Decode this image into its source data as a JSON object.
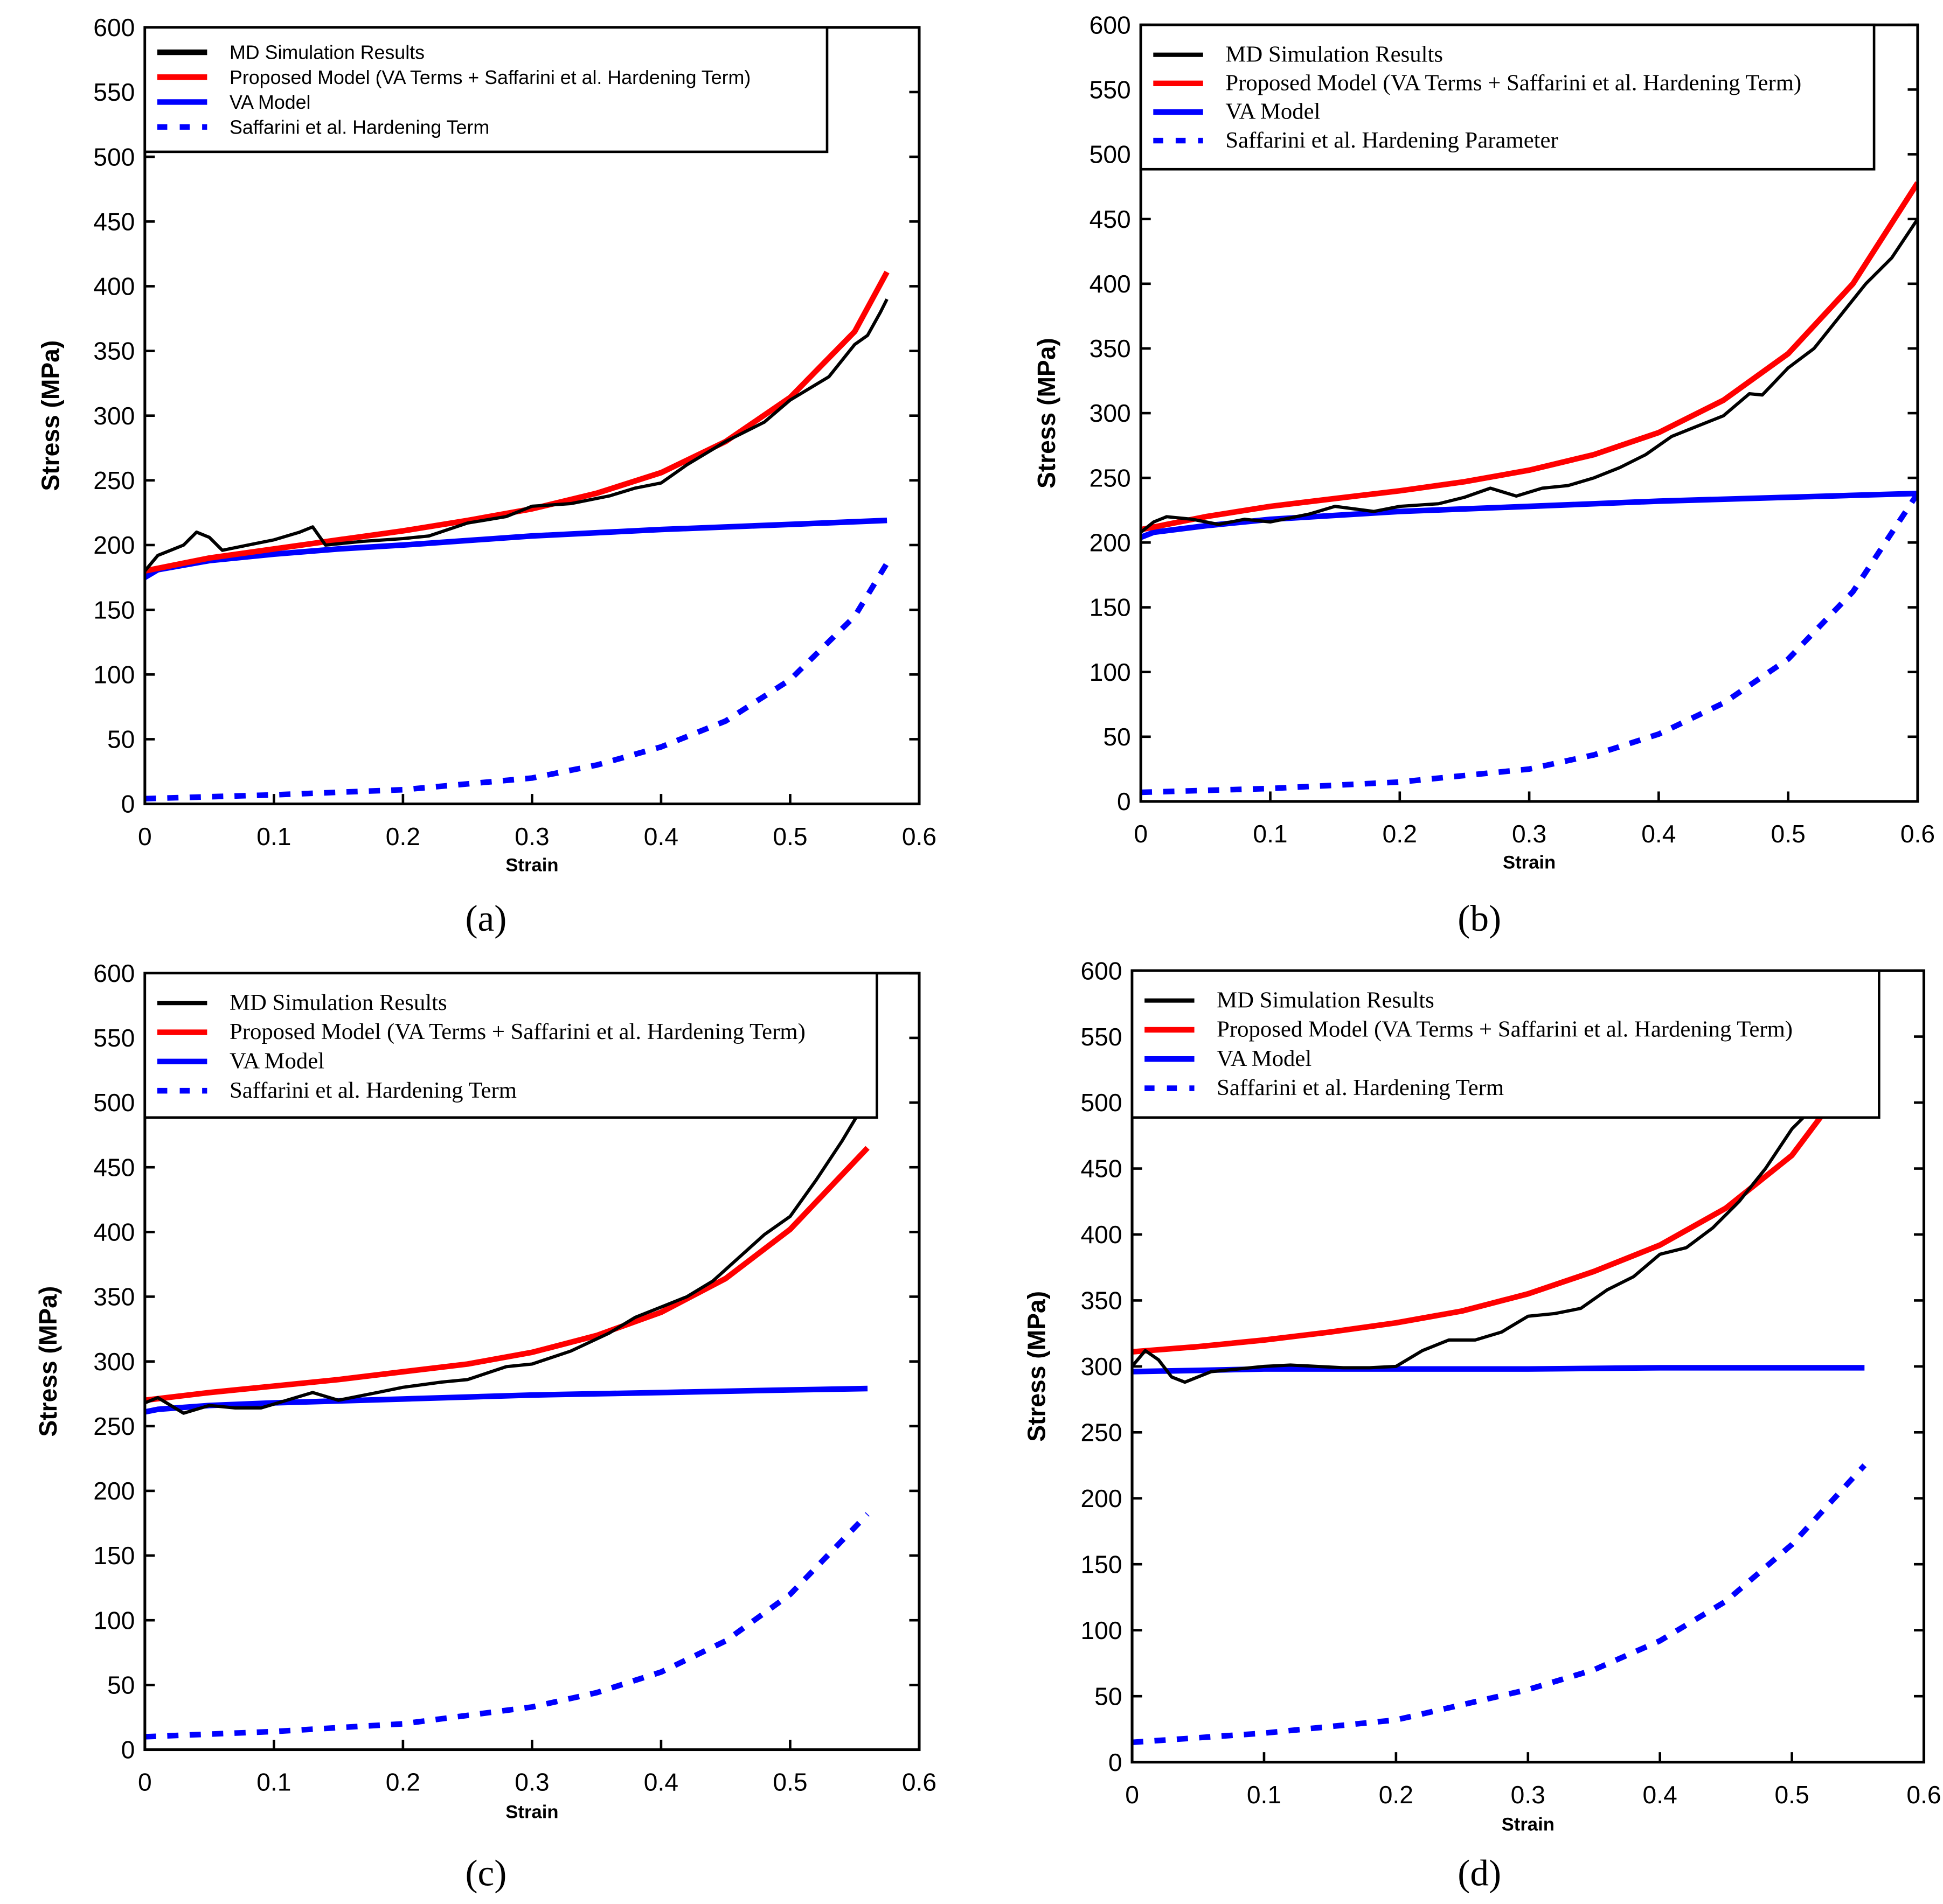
{
  "colors": {
    "md": "#000000",
    "proposed": "#ff0000",
    "va": "#0000ff",
    "hardening": "#0000ff"
  },
  "chart_data": [
    {
      "type": "line",
      "panel": "(a)",
      "xlabel": "Strain",
      "ylabel": "Stress (MPa)",
      "xlim": [
        0,
        0.6
      ],
      "ylim": [
        0,
        600
      ],
      "xticks": [
        "0",
        "0.1",
        "0.2",
        "0.3",
        "0.4",
        "0.5",
        "0.6"
      ],
      "yticks": [
        "0",
        "50",
        "100",
        "150",
        "200",
        "250",
        "300",
        "350",
        "400",
        "450",
        "500",
        "550",
        "600"
      ],
      "legend": [
        "MD Simulation Results",
        "Proposed Model (VA Terms + Saffarini et al. Hardening Term)",
        "VA Model",
        "Saffarini et al. Hardening Term"
      ],
      "series": [
        {
          "name": "MD Simulation Results",
          "x": [
            0,
            0.01,
            0.02,
            0.03,
            0.04,
            0.05,
            0.06,
            0.08,
            0.1,
            0.12,
            0.13,
            0.14,
            0.17,
            0.2,
            0.22,
            0.25,
            0.28,
            0.3,
            0.33,
            0.36,
            0.38,
            0.4,
            0.42,
            0.45,
            0.48,
            0.5,
            0.53,
            0.55,
            0.56,
            0.57,
            0.575
          ],
          "y": [
            180,
            192,
            196,
            200,
            210,
            206,
            196,
            200,
            204,
            210,
            214,
            200,
            203,
            205,
            207,
            217,
            222,
            230,
            232,
            238,
            244,
            248,
            262,
            280,
            295,
            312,
            330,
            355,
            362,
            380,
            390
          ]
        },
        {
          "name": "Proposed Model",
          "x": [
            0,
            0.05,
            0.1,
            0.15,
            0.2,
            0.25,
            0.3,
            0.35,
            0.4,
            0.45,
            0.5,
            0.55,
            0.575
          ],
          "y": [
            180,
            190,
            197,
            204,
            211,
            219,
            228,
            240,
            256,
            280,
            314,
            365,
            411
          ]
        },
        {
          "name": "VA Model",
          "x": [
            0,
            0.01,
            0.05,
            0.1,
            0.15,
            0.2,
            0.3,
            0.4,
            0.5,
            0.575
          ],
          "y": [
            175,
            181,
            188,
            193,
            197,
            200,
            207,
            212,
            216,
            219
          ]
        },
        {
          "name": "Saffarini et al. Hardening Term",
          "x": [
            0,
            0.1,
            0.2,
            0.3,
            0.35,
            0.4,
            0.45,
            0.5,
            0.55,
            0.575
          ],
          "y": [
            4,
            7,
            11,
            20,
            30,
            44,
            64,
            96,
            145,
            186
          ]
        }
      ]
    },
    {
      "type": "line",
      "panel": "(b)",
      "xlabel": "Strain",
      "ylabel": "Stress (MPa)",
      "xlim": [
        0,
        0.6
      ],
      "ylim": [
        0,
        600
      ],
      "xticks": [
        "0",
        "0.1",
        "0.2",
        "0.3",
        "0.4",
        "0.5",
        "0.6"
      ],
      "yticks": [
        "0",
        "50",
        "100",
        "150",
        "200",
        "250",
        "300",
        "350",
        "400",
        "450",
        "500",
        "550",
        "600"
      ],
      "legend": [
        "MD Simulation Results",
        "Proposed Model (VA Terms + Saffarini et al. Hardening Term)",
        "VA Model",
        "Saffarini et al. Hardening Parameter"
      ],
      "series": [
        {
          "name": "MD Simulation Results",
          "x": [
            0,
            0.01,
            0.02,
            0.04,
            0.06,
            0.08,
            0.1,
            0.13,
            0.15,
            0.18,
            0.2,
            0.23,
            0.25,
            0.27,
            0.29,
            0.31,
            0.33,
            0.35,
            0.37,
            0.39,
            0.41,
            0.43,
            0.45,
            0.47,
            0.48,
            0.5,
            0.52,
            0.54,
            0.56,
            0.58,
            0.6
          ],
          "y": [
            208,
            216,
            220,
            218,
            214,
            218,
            216,
            222,
            228,
            224,
            228,
            230,
            235,
            242,
            236,
            242,
            244,
            250,
            258,
            268,
            282,
            290,
            298,
            315,
            314,
            335,
            350,
            375,
            400,
            420,
            450
          ]
        },
        {
          "name": "Proposed Model",
          "x": [
            0,
            0.05,
            0.1,
            0.15,
            0.2,
            0.25,
            0.3,
            0.35,
            0.4,
            0.45,
            0.5,
            0.55,
            0.6
          ],
          "y": [
            210,
            220,
            228,
            234,
            240,
            247,
            256,
            268,
            285,
            310,
            346,
            400,
            478
          ]
        },
        {
          "name": "VA Model",
          "x": [
            0,
            0.01,
            0.05,
            0.1,
            0.2,
            0.3,
            0.4,
            0.5,
            0.6
          ],
          "y": [
            204,
            208,
            213,
            218,
            224,
            228,
            232,
            235,
            238
          ]
        },
        {
          "name": "Saffarini et al. Hardening Parameter",
          "x": [
            0,
            0.1,
            0.2,
            0.3,
            0.35,
            0.4,
            0.45,
            0.5,
            0.55,
            0.6
          ],
          "y": [
            7,
            10,
            15,
            25,
            36,
            52,
            76,
            110,
            162,
            238
          ]
        }
      ]
    },
    {
      "type": "line",
      "panel": "(c)",
      "xlabel": "Strain",
      "ylabel": "Stress (MPa)",
      "xlim": [
        0,
        0.6
      ],
      "ylim": [
        0,
        600
      ],
      "xticks": [
        "0",
        "0.1",
        "0.2",
        "0.3",
        "0.4",
        "0.5",
        "0.6"
      ],
      "yticks": [
        "0",
        "50",
        "100",
        "150",
        "200",
        "250",
        "300",
        "350",
        "400",
        "450",
        "500",
        "550",
        "600"
      ],
      "legend": [
        "MD Simulation Results",
        "Proposed Model (VA Terms + Saffarini et al. Hardening Term)",
        "VA Model",
        "Saffarini et al. Hardening Term"
      ],
      "series": [
        {
          "name": "MD Simulation Results",
          "x": [
            0,
            0.01,
            0.03,
            0.05,
            0.07,
            0.09,
            0.11,
            0.13,
            0.15,
            0.18,
            0.2,
            0.23,
            0.25,
            0.28,
            0.3,
            0.33,
            0.36,
            0.38,
            0.4,
            0.42,
            0.44,
            0.46,
            0.48,
            0.5,
            0.52,
            0.54,
            0.555
          ],
          "y": [
            268,
            272,
            260,
            266,
            264,
            264,
            270,
            276,
            270,
            276,
            280,
            284,
            286,
            296,
            298,
            308,
            322,
            334,
            342,
            350,
            362,
            380,
            398,
            412,
            440,
            470,
            495
          ]
        },
        {
          "name": "Proposed Model",
          "x": [
            0,
            0.05,
            0.1,
            0.15,
            0.2,
            0.25,
            0.3,
            0.35,
            0.4,
            0.45,
            0.5,
            0.56
          ],
          "y": [
            270,
            276,
            281,
            286,
            292,
            298,
            307,
            320,
            338,
            364,
            402,
            465
          ]
        },
        {
          "name": "VA Model",
          "x": [
            0,
            0.01,
            0.05,
            0.1,
            0.2,
            0.3,
            0.4,
            0.5,
            0.56
          ],
          "y": [
            261,
            263,
            266,
            268,
            271,
            274,
            276,
            278,
            279
          ]
        },
        {
          "name": "Saffarini et al. Hardening Term",
          "x": [
            0,
            0.1,
            0.2,
            0.3,
            0.35,
            0.4,
            0.45,
            0.5,
            0.56
          ],
          "y": [
            10,
            14,
            20,
            33,
            44,
            60,
            84,
            120,
            182
          ]
        }
      ]
    },
    {
      "type": "line",
      "panel": "(d)",
      "xlabel": "Strain",
      "ylabel": "Stress (MPa)",
      "xlim": [
        0,
        0.6
      ],
      "ylim": [
        0,
        600
      ],
      "xticks": [
        "0",
        "0.1",
        "0.2",
        "0.3",
        "0.4",
        "0.5",
        "0.6"
      ],
      "yticks": [
        "0",
        "50",
        "100",
        "150",
        "200",
        "250",
        "300",
        "350",
        "400",
        "450",
        "500",
        "550",
        "600"
      ],
      "legend": [
        "MD Simulation Results",
        "Proposed Model (VA Terms + Saffarini et al. Hardening Term)",
        "VA Model",
        "Saffarini et al. Hardening Term"
      ],
      "series": [
        {
          "name": "MD Simulation Results",
          "x": [
            0,
            0.01,
            0.02,
            0.03,
            0.04,
            0.06,
            0.08,
            0.1,
            0.12,
            0.14,
            0.16,
            0.18,
            0.2,
            0.22,
            0.24,
            0.26,
            0.28,
            0.3,
            0.32,
            0.34,
            0.36,
            0.38,
            0.4,
            0.42,
            0.44,
            0.46,
            0.48,
            0.5,
            0.52
          ],
          "y": [
            300,
            312,
            305,
            292,
            288,
            296,
            298,
            300,
            301,
            300,
            299,
            299,
            300,
            312,
            320,
            320,
            326,
            338,
            340,
            344,
            358,
            368,
            385,
            390,
            405,
            425,
            450,
            480,
            500
          ]
        },
        {
          "name": "Proposed Model",
          "x": [
            0,
            0.05,
            0.1,
            0.15,
            0.2,
            0.25,
            0.3,
            0.35,
            0.4,
            0.45,
            0.5,
            0.53
          ],
          "y": [
            311,
            315,
            320,
            326,
            333,
            342,
            355,
            372,
            392,
            420,
            460,
            500
          ]
        },
        {
          "name": "VA Model",
          "x": [
            0,
            0.05,
            0.1,
            0.2,
            0.3,
            0.4,
            0.5,
            0.555
          ],
          "y": [
            296,
            297,
            298,
            298,
            298,
            299,
            299,
            299
          ]
        },
        {
          "name": "Saffarini et al. Hardening Term",
          "x": [
            0,
            0.1,
            0.2,
            0.3,
            0.35,
            0.4,
            0.45,
            0.5,
            0.555
          ],
          "y": [
            15,
            22,
            32,
            55,
            70,
            92,
            122,
            165,
            225
          ]
        }
      ]
    }
  ]
}
